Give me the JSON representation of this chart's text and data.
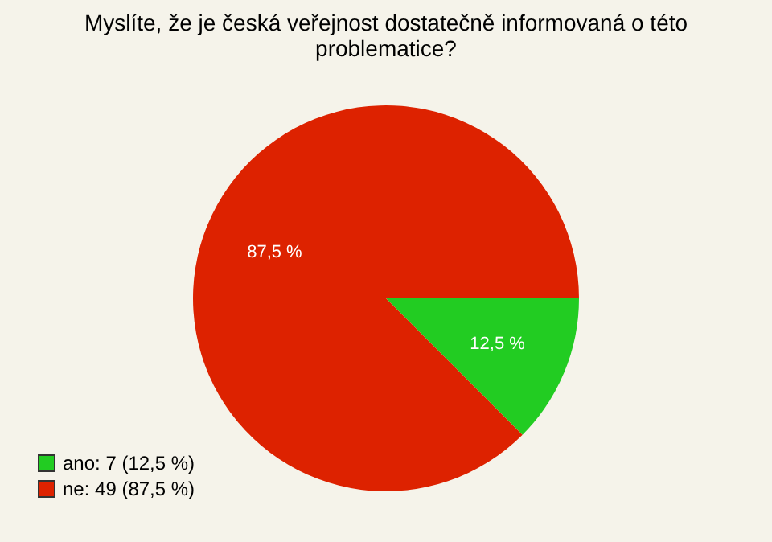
{
  "chart_data": {
    "type": "pie",
    "title": [
      "Myslíte, že je česká veřejnost dostatečně informovaná o této",
      "problematice?"
    ],
    "categories": [
      "ano: 7 (12,5 %)",
      "ne: 49 (87,5 %)"
    ],
    "values": [
      12.5,
      87.5
    ],
    "colors": [
      "#22cc22",
      "#dd2200"
    ],
    "value_labels": [
      "12,5 %",
      "87,5 %"
    ],
    "legend": "bottom left"
  }
}
